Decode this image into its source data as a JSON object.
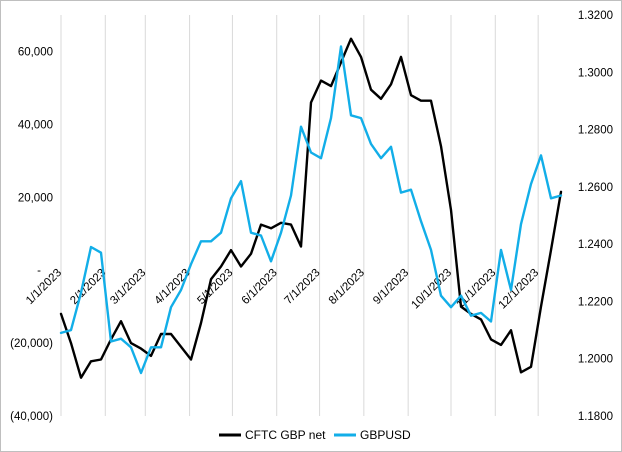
{
  "chart_data": {
    "type": "line",
    "title": "",
    "xlabel": "",
    "ylabel_left": "",
    "ylabel_right": "",
    "x_tick_labels": [
      "1/1/2023",
      "2/1/2023",
      "3/1/2023",
      "4/1/2023",
      "5/1/2023",
      "6/1/2023",
      "7/1/2023",
      "8/1/2023",
      "9/1/2023",
      "10/1/2023",
      "11/1/2023",
      "12/1/2023"
    ],
    "y_left": {
      "ticks": [
        60000,
        40000,
        20000,
        0,
        -20000,
        -40000
      ],
      "tick_labels": [
        "60,000",
        "40,000",
        "20,000",
        "-",
        "(20,000)",
        "(40,000)"
      ],
      "range": [
        -40000,
        70000
      ]
    },
    "y_right": {
      "ticks": [
        1.32,
        1.3,
        1.28,
        1.26,
        1.24,
        1.22,
        1.2,
        1.18
      ],
      "tick_labels": [
        "1.3200",
        "1.3000",
        "1.2800",
        "1.2600",
        "1.2400",
        "1.2200",
        "1.2000",
        "1.1800"
      ],
      "range": [
        1.18,
        1.32
      ]
    },
    "grid": "vertical",
    "legend_position": "bottom",
    "series": [
      {
        "name": "CFTC GBP net",
        "axis": "left",
        "color": "#000000",
        "x": [
          "2023-01-01",
          "2023-01-08",
          "2023-01-15",
          "2023-01-22",
          "2023-01-29",
          "2023-02-05",
          "2023-02-12",
          "2023-02-19",
          "2023-02-26",
          "2023-03-05",
          "2023-03-12",
          "2023-03-19",
          "2023-03-26",
          "2023-04-02",
          "2023-04-09",
          "2023-04-16",
          "2023-04-23",
          "2023-04-30",
          "2023-05-07",
          "2023-05-14",
          "2023-05-21",
          "2023-05-28",
          "2023-06-04",
          "2023-06-11",
          "2023-06-18",
          "2023-06-25",
          "2023-07-02",
          "2023-07-09",
          "2023-07-16",
          "2023-07-23",
          "2023-07-30",
          "2023-08-06",
          "2023-08-13",
          "2023-08-20",
          "2023-08-27",
          "2023-09-03",
          "2023-09-10",
          "2023-09-17",
          "2023-09-24",
          "2023-10-01",
          "2023-10-08",
          "2023-10-15",
          "2023-10-22",
          "2023-10-29",
          "2023-11-05",
          "2023-11-12",
          "2023-11-19",
          "2023-11-26",
          "2023-12-03",
          "2023-12-10",
          "2023-12-17",
          "2023-12-24"
        ],
        "y": [
          -12000,
          -20000,
          -29500,
          -25000,
          -24500,
          -19000,
          -14000,
          -20000,
          -21500,
          -23500,
          -17500,
          -17500,
          -21000,
          -24500,
          -14500,
          -2500,
          1000,
          5500,
          1000,
          4500,
          12500,
          11500,
          13000,
          12500,
          6500,
          46000,
          52000,
          50500,
          57000,
          63500,
          58500,
          49500,
          47000,
          51000,
          58500,
          48000,
          46500,
          46500,
          34000,
          16500,
          -10000,
          -12000,
          -13500,
          -19000,
          -20500,
          -16500,
          -28000,
          -26500,
          -10000,
          5500,
          21500,
          null
        ]
      },
      {
        "name": "GBPUSD",
        "axis": "right",
        "color": "#12aee8",
        "x": [
          "2023-01-01",
          "2023-01-08",
          "2023-01-15",
          "2023-01-22",
          "2023-01-29",
          "2023-02-05",
          "2023-02-12",
          "2023-02-19",
          "2023-02-26",
          "2023-03-05",
          "2023-03-12",
          "2023-03-19",
          "2023-03-26",
          "2023-04-02",
          "2023-04-09",
          "2023-04-16",
          "2023-04-23",
          "2023-04-30",
          "2023-05-07",
          "2023-05-14",
          "2023-05-21",
          "2023-05-28",
          "2023-06-04",
          "2023-06-11",
          "2023-06-18",
          "2023-06-25",
          "2023-07-02",
          "2023-07-09",
          "2023-07-16",
          "2023-07-23",
          "2023-07-30",
          "2023-08-06",
          "2023-08-13",
          "2023-08-20",
          "2023-08-27",
          "2023-09-03",
          "2023-09-10",
          "2023-09-17",
          "2023-09-24",
          "2023-10-01",
          "2023-10-08",
          "2023-10-15",
          "2023-10-22",
          "2023-10-29",
          "2023-11-05",
          "2023-11-12",
          "2023-11-19",
          "2023-11-26",
          "2023-12-03",
          "2023-12-10",
          "2023-12-17",
          "2023-12-24"
        ],
        "y": [
          1.209,
          1.21,
          1.223,
          1.239,
          1.237,
          1.206,
          1.207,
          1.204,
          1.195,
          1.204,
          1.204,
          1.218,
          1.224,
          1.233,
          1.241,
          1.241,
          1.244,
          1.256,
          1.262,
          1.244,
          1.243,
          1.234,
          1.244,
          1.257,
          1.281,
          1.272,
          1.27,
          1.284,
          1.309,
          1.285,
          1.284,
          1.275,
          1.27,
          1.274,
          1.258,
          1.259,
          1.248,
          1.238,
          1.222,
          1.218,
          1.222,
          1.215,
          1.216,
          1.213,
          1.238,
          1.224,
          1.247,
          1.261,
          1.271,
          1.256,
          1.257,
          null
        ]
      }
    ]
  }
}
